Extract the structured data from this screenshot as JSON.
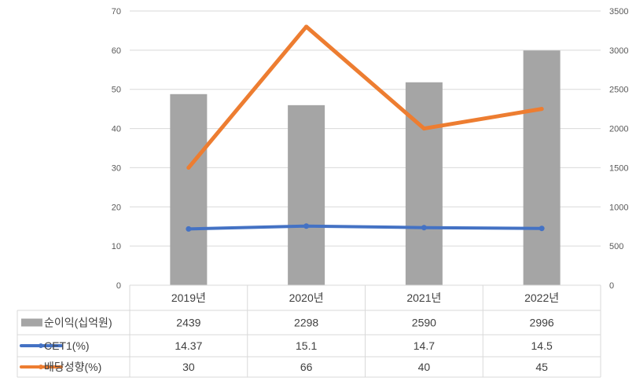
{
  "chart_data": {
    "type": "bar",
    "categories": [
      "2019년",
      "2020년",
      "2021년",
      "2022년"
    ],
    "series": [
      {
        "name": "순이익(십억원)",
        "kind": "bar",
        "axis": "right",
        "color": "#a5a5a5",
        "values": [
          2439,
          2298,
          2590,
          2996
        ]
      },
      {
        "name": "CET1(%)",
        "kind": "line",
        "axis": "left",
        "color": "#4472c4",
        "values": [
          14.37,
          15.1,
          14.7,
          14.5
        ]
      },
      {
        "name": "배당성향(%)",
        "kind": "line",
        "axis": "left",
        "color": "#ed7d31",
        "values": [
          30,
          66,
          40,
          45
        ]
      }
    ],
    "y_left": {
      "ylim": [
        0,
        70
      ],
      "ticks": [
        "0",
        "10",
        "20",
        "30",
        "40",
        "50",
        "60",
        "70"
      ]
    },
    "y_right": {
      "ylim": [
        0,
        3500
      ],
      "ticks": [
        "0",
        "500",
        "1000",
        "1500",
        "2000",
        "2500",
        "3000",
        "3500"
      ]
    },
    "table": {
      "rows": [
        {
          "label": "순이익(십억원)",
          "values": [
            "2439",
            "2298",
            "2590",
            "2996"
          ]
        },
        {
          "label": "CET1(%)",
          "values": [
            "14.37",
            "15.1",
            "14.7",
            "14.5"
          ]
        },
        {
          "label": "배당성향(%)",
          "values": [
            "30",
            "66",
            "40",
            "45"
          ]
        }
      ]
    },
    "grid": true,
    "legend": "data-table"
  }
}
